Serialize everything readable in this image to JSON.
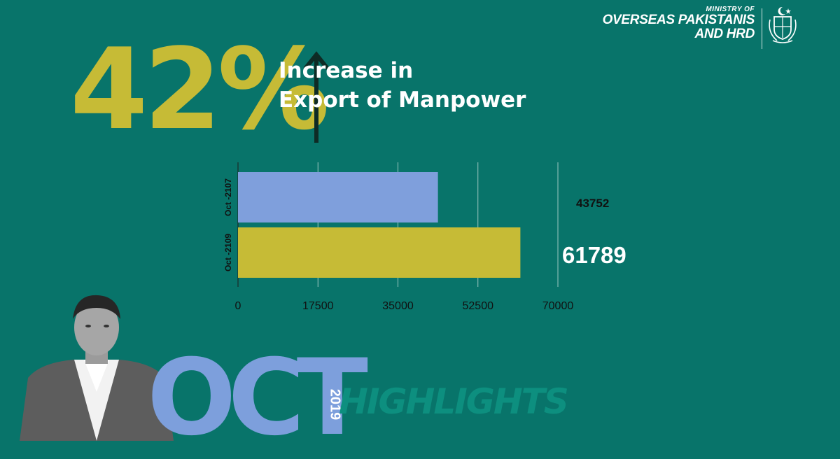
{
  "header": {
    "ministry_small": "MINISTRY OF",
    "ministry_line1": "OVERSEAS PAKISTANIS",
    "ministry_line2": "AND HRD",
    "emblem_icon": "pakistan-emblem-icon"
  },
  "headline": {
    "percent": "42%",
    "line1": "Increase in",
    "line2": "Export of Manpower",
    "arrow_icon": "up-arrow-icon"
  },
  "colors": {
    "background": "#08746a",
    "accent_gold": "#c6bb36",
    "accent_blue": "#7d9fdc",
    "highlight_green": "#0d8f7f"
  },
  "chart_data": {
    "type": "bar",
    "orientation": "horizontal",
    "categories": [
      "Oct -2107",
      "Oct -2109"
    ],
    "values": [
      43752,
      61789
    ],
    "value_labels": [
      "43752",
      "61789"
    ],
    "bar_colors": [
      "#7f9fdc",
      "#c6bb36"
    ],
    "xlim": [
      0,
      70000
    ],
    "xticks": [
      0,
      17500,
      35000,
      52500,
      70000
    ],
    "xtick_labels": [
      "0",
      "17500",
      "35000",
      "52500",
      "70000"
    ],
    "grid": true,
    "title": "",
    "xlabel": "",
    "ylabel": ""
  },
  "footer": {
    "person_icon": "person-photo-icon",
    "month": "OCT",
    "year": "2019",
    "label": "HIGHLIGHTS"
  }
}
